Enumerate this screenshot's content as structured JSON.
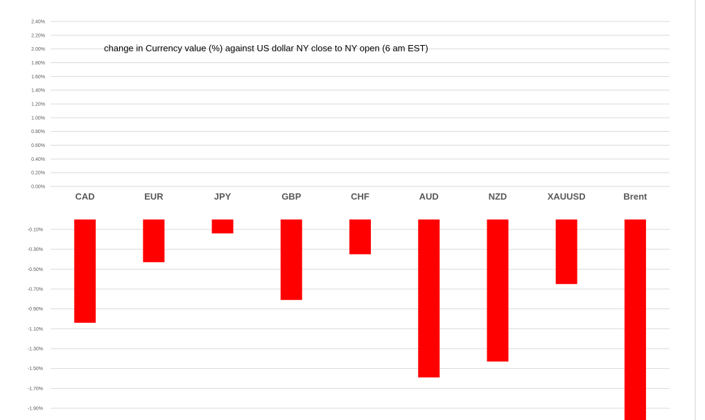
{
  "chart_data": {
    "type": "bar",
    "title": "change in Currency value (%)  against US dollar  NY close to  NY open (6 am EST)",
    "categories": [
      "CAD",
      "EUR",
      "JPY",
      "GBP",
      "CHF",
      "AUD",
      "NZD",
      "XAUUSD",
      "Brent"
    ],
    "values": [
      -1.04,
      -0.43,
      -0.14,
      -0.81,
      -0.35,
      -1.59,
      -1.43,
      -0.65,
      -2.02
    ],
    "positive_ticks": [
      "2.40%",
      "2.20%",
      "2.00%",
      "1.80%",
      "1.60%",
      "1.40%",
      "1.20%",
      "1.00%",
      "0.80%",
      "0.60%",
      "0.40%",
      "0.20%",
      "0.00%"
    ],
    "negative_ticks": [
      "-0.10%",
      "-0.30%",
      "-0.50%",
      "-0.70%",
      "-0.90%",
      "-1.10%",
      "-1.30%",
      "-1.50%",
      "-1.70%",
      "-1.90%"
    ],
    "positive_range": [
      0,
      2.4
    ],
    "negative_range": [
      -0.1,
      -1.9
    ],
    "bar_color": "#ff0000",
    "grid": true,
    "legend": "none"
  }
}
